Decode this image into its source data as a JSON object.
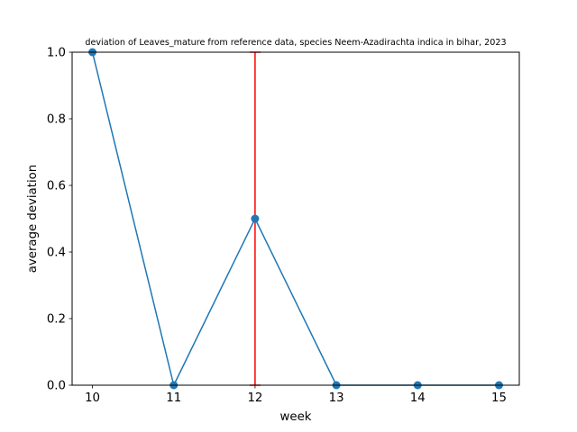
{
  "chart_data": {
    "type": "line",
    "title": "deviation of Leaves_mature from reference data, species Neem-Azadirachta indica in bihar, 2023",
    "xlabel": "week",
    "ylabel": "average deviation",
    "x": [
      10,
      11,
      12,
      13,
      14,
      15
    ],
    "xlim": [
      9.75,
      15.25
    ],
    "ylim": [
      0.0,
      1.0
    ],
    "xticks": [
      "10",
      "11",
      "12",
      "13",
      "14",
      "15"
    ],
    "yticks": [
      "0.0",
      "0.2",
      "0.4",
      "0.6",
      "0.8",
      "1.0"
    ],
    "grid": false,
    "series": [
      {
        "values": [
          1.0,
          0.0,
          0.5,
          0.0,
          0.0,
          0.0
        ],
        "color": "#1f77b4",
        "marker": "circle",
        "error_low": [
          0,
          0,
          0.5,
          0,
          0,
          0
        ],
        "error_high": [
          0,
          0,
          0.5,
          0,
          0,
          0
        ],
        "error_color": "#ff0000"
      }
    ]
  }
}
